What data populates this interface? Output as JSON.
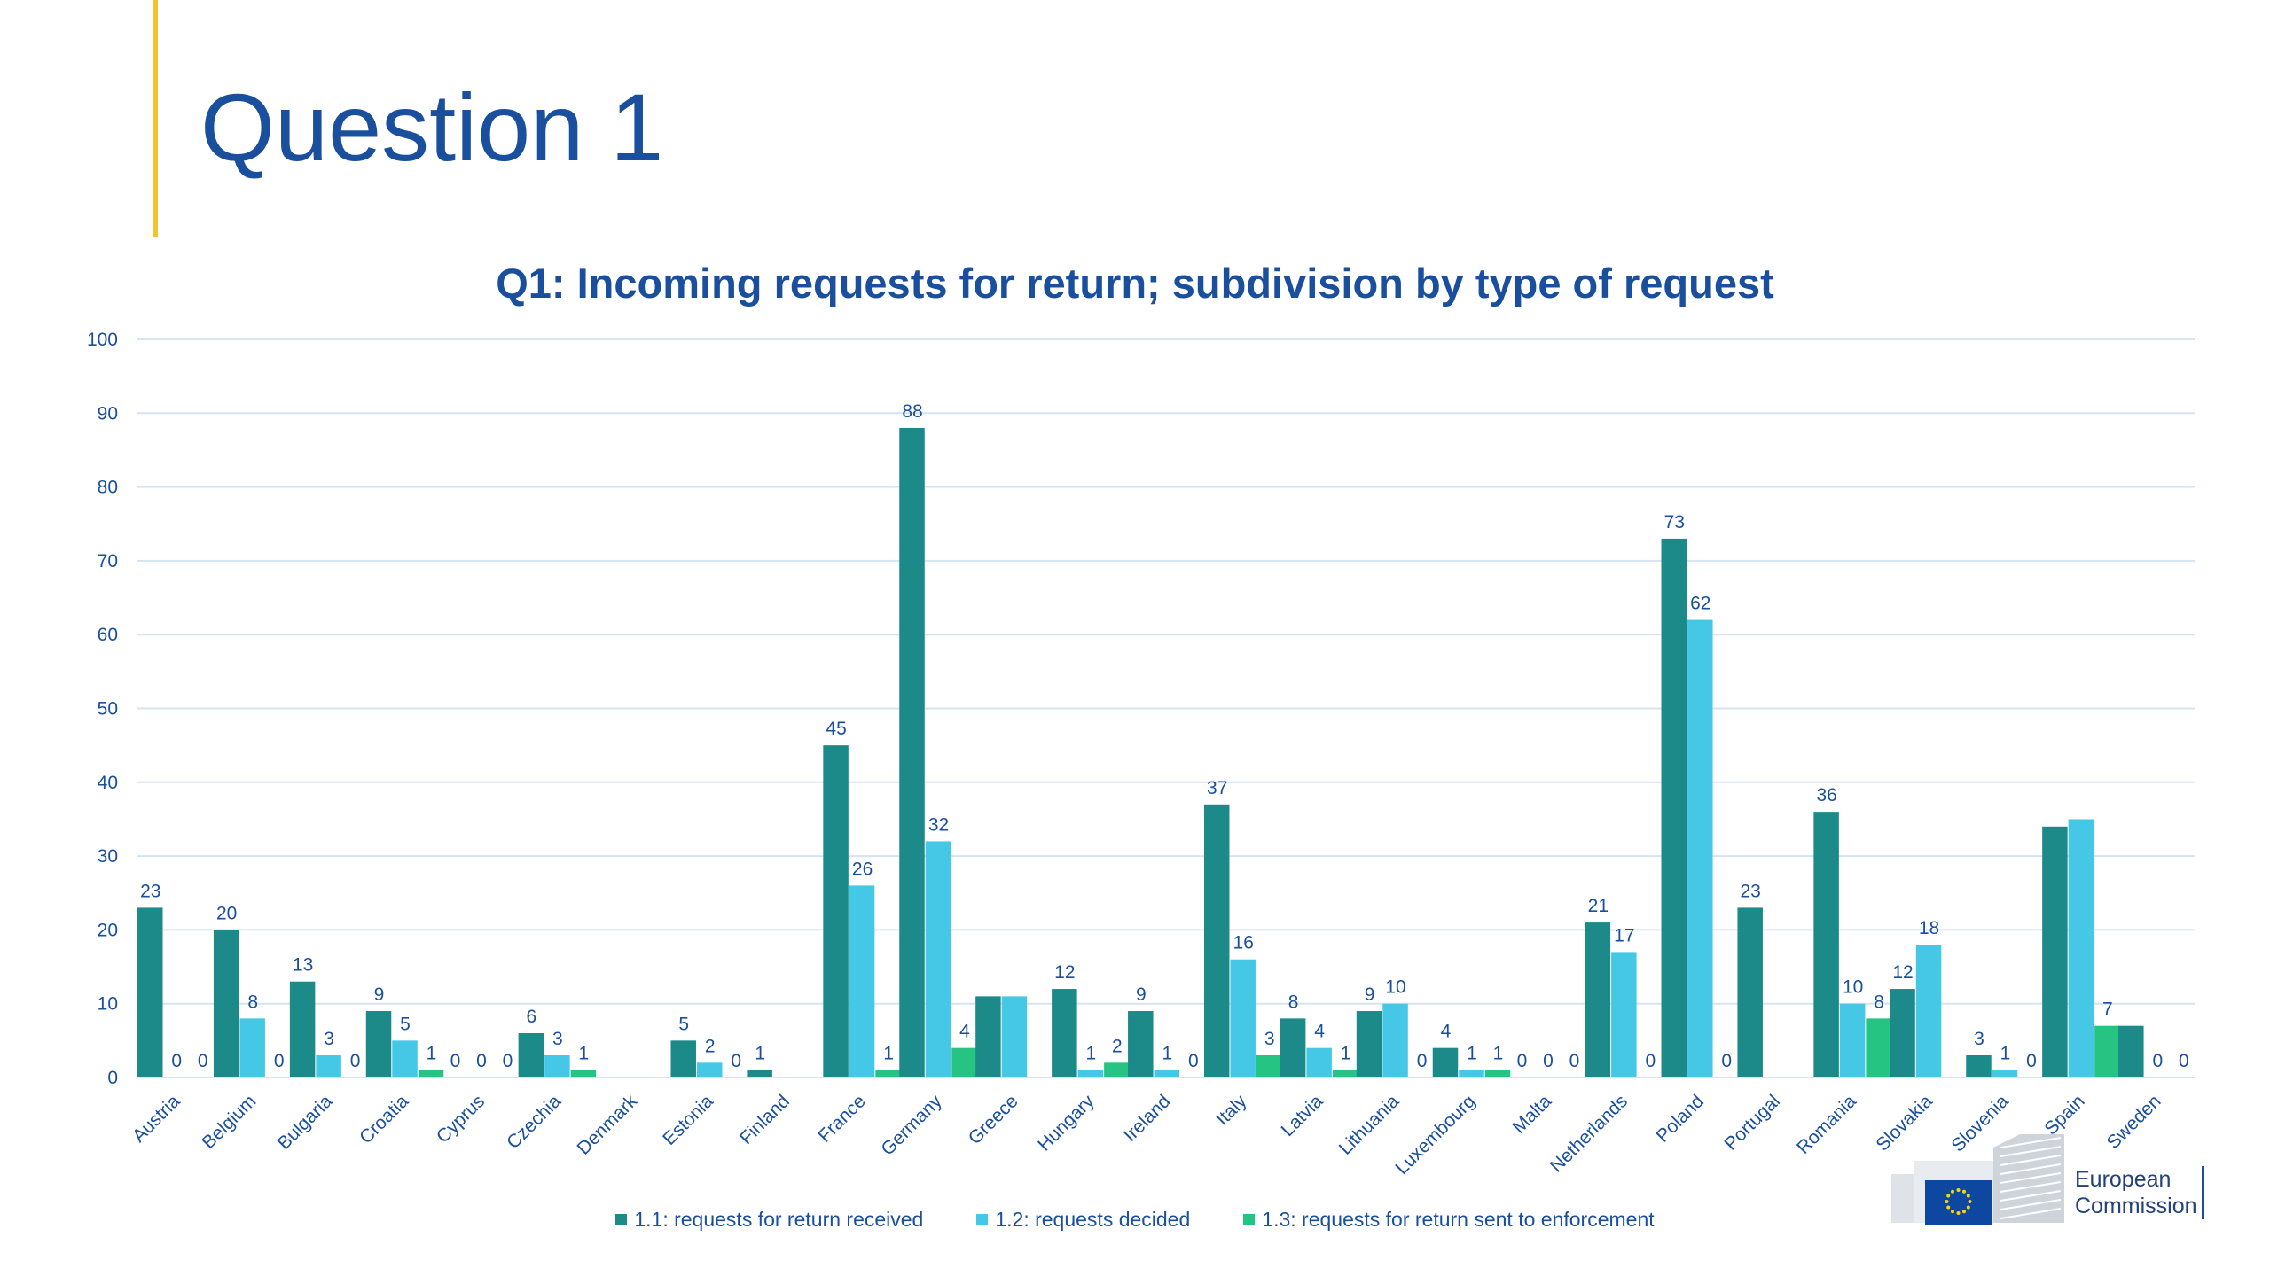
{
  "page": {
    "title": "Question 1"
  },
  "logo": {
    "line1": "European",
    "line2": "Commission"
  },
  "chart_data": {
    "type": "bar",
    "title": "Q1: Incoming requests for return; subdivision by type of request",
    "ylim": [
      0,
      100
    ],
    "yticks": [
      0,
      10,
      20,
      30,
      40,
      50,
      60,
      70,
      80,
      90,
      100
    ],
    "grid": true,
    "legend_position": "bottom",
    "categories": [
      "Austria",
      "Belgium",
      "Bulgaria",
      "Croatia",
      "Cyprus",
      "Czechia",
      "Denmark",
      "Estonia",
      "Finland",
      "France",
      "Germany",
      "Greece",
      "Hungary",
      "Ireland",
      "Italy",
      "Latvia",
      "Lithuania",
      "Luxembourg",
      "Malta",
      "Netherlands",
      "Poland",
      "Portugal",
      "Romania",
      "Slovakia",
      "Slovenia",
      "Spain",
      "Sweden"
    ],
    "series": [
      {
        "name": "1.1: requests for return received",
        "color": "#1d8a8a",
        "values": [
          23,
          20,
          13,
          9,
          0,
          6,
          null,
          5,
          1,
          45,
          88,
          11,
          12,
          9,
          37,
          8,
          9,
          4,
          0,
          21,
          73,
          23,
          36,
          12,
          3,
          34,
          7
        ],
        "labels": [
          "23",
          "20",
          "13",
          "9",
          "0",
          "6",
          "",
          "5",
          "1",
          "45",
          "88",
          "",
          "12",
          "9",
          "37",
          "8",
          "9",
          "4",
          "0",
          "21",
          "73",
          "23",
          "36",
          "12",
          "3",
          "",
          ""
        ]
      },
      {
        "name": "1.2: requests decided",
        "color": "#45c8e6",
        "values": [
          0,
          8,
          3,
          5,
          0,
          3,
          null,
          2,
          null,
          26,
          32,
          11,
          1,
          1,
          16,
          4,
          10,
          1,
          0,
          17,
          62,
          null,
          10,
          18,
          1,
          35,
          0
        ],
        "labels": [
          "0",
          "8",
          "3",
          "5",
          "0",
          "3",
          "",
          "2",
          "",
          "26",
          "32",
          "",
          "1",
          "1",
          "16",
          "4",
          "10",
          "1",
          "0",
          "17",
          "62",
          "",
          "10",
          "18",
          "1",
          "",
          "0"
        ]
      },
      {
        "name": "1.3: requests for return sent to enforcement",
        "color": "#25c483",
        "values": [
          0,
          0,
          0,
          1,
          0,
          1,
          null,
          0,
          null,
          1,
          4,
          null,
          2,
          0,
          3,
          1,
          0,
          1,
          0,
          0,
          0,
          null,
          8,
          null,
          0,
          7,
          0
        ],
        "labels": [
          "0",
          "0",
          "0",
          "1",
          "0",
          "1",
          "",
          "0",
          "",
          "1",
          "4",
          "",
          "2",
          "0",
          "3",
          "1",
          "0",
          "1",
          "0",
          "0",
          "0",
          "",
          "8",
          "",
          "0",
          "7",
          "0"
        ]
      }
    ]
  }
}
